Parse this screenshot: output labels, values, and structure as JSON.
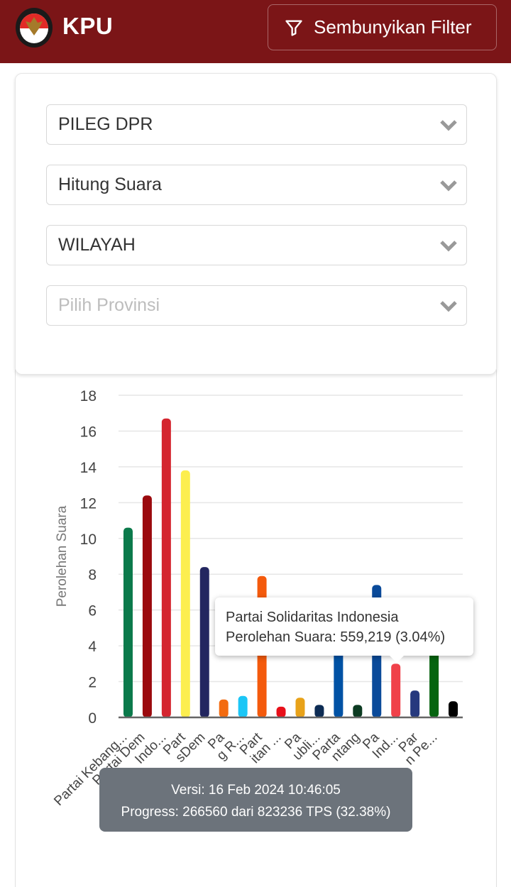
{
  "header": {
    "brand": "KPU",
    "logo_icon": "kpu-garuda-logo",
    "filter_button_label": "Sembunyikan Filter",
    "filter_icon": "filter-icon",
    "background_color": "#7b1517"
  },
  "filters": {
    "election_type": {
      "value": "PILEG DPR"
    },
    "data_type": {
      "value": "Hitung Suara"
    },
    "view_mode": {
      "value": "WILAYAH"
    },
    "province": {
      "value": "",
      "placeholder": "Pilih Provinsi"
    }
  },
  "tooltip": {
    "party": "Partai Solidaritas Indonesia",
    "line": "Perolehan Suara: 559,219 (3.04%)"
  },
  "version_toast": {
    "version": "Versi: 16 Feb 2024 10:46:05",
    "progress": "Progress: 266560 dari 823236 TPS (32.38%)"
  },
  "chart_data": {
    "type": "bar",
    "title": "",
    "xlabel": "",
    "ylabel": "Perolehan Suara",
    "ylim": [
      0,
      18
    ],
    "yticks": [
      0,
      2,
      4,
      6,
      8,
      10,
      12,
      14,
      16,
      18
    ],
    "grid": true,
    "legend": "none",
    "categories": [
      "Partai Kebang...",
      "Partai Dem...",
      "...Indo...",
      "...",
      "...sDem",
      "...",
      "...g R...",
      "...",
      "...itan ...",
      "...",
      "...ubli...",
      "...",
      "...ntang",
      "...",
      "...Ind...",
      "...",
      "...n Pe...",
      "..."
    ],
    "x_tick_labels_visible": [
      "Partai Kebang...",
      "Partai Dem",
      "Indo...",
      "Part",
      "sDem",
      "Pa",
      "g R...",
      "Part",
      "itan ...",
      "Pa",
      "ubli...",
      "Parta",
      "ntang",
      "Pa",
      "Ind...",
      "Par",
      "n Pe..."
    ],
    "values": [
      10.6,
      12.4,
      16.7,
      13.8,
      8.4,
      1.0,
      1.2,
      7.9,
      0.6,
      1.1,
      0.7,
      4.5,
      0.7,
      7.4,
      3.0,
      1.5,
      4.5,
      0.9
    ],
    "colors": [
      "#0b7a4b",
      "#9b0a0e",
      "#d4252f",
      "#fcee4f",
      "#232660",
      "#f36b10",
      "#1bc6f6",
      "#f45a0c",
      "#e8101a",
      "#e8a219",
      "#0d2c54",
      "#0052a5",
      "#0c3b22",
      "#0a4a9a",
      "#f0414a",
      "#26397e",
      "#05640f",
      "#000000"
    ],
    "highlighted": {
      "index": 14,
      "label": "Partai Solidaritas Indonesia",
      "votes": "559,219",
      "percent": "3.04%"
    }
  }
}
